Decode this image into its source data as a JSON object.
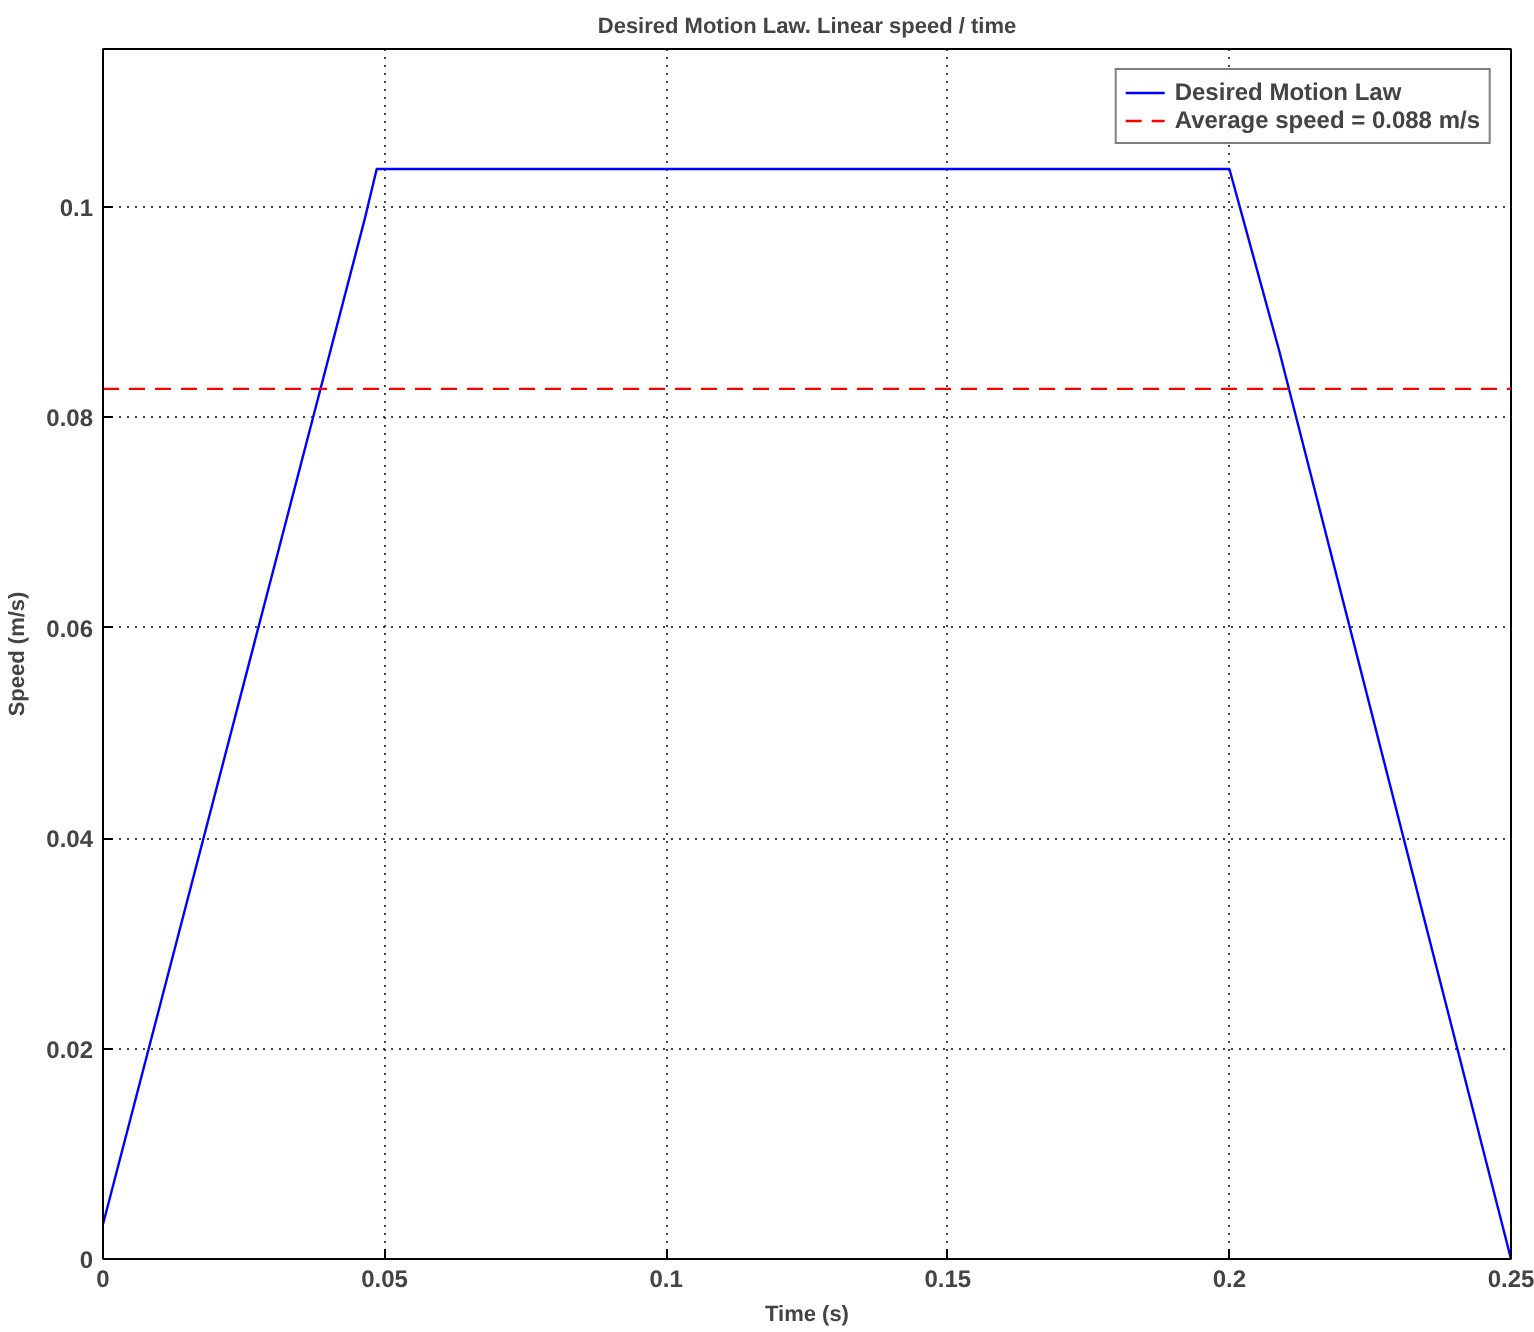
{
  "chart_data": {
    "type": "line",
    "title": "Desired Motion Law. Linear speed / time",
    "xlabel": "Time (s)",
    "ylabel": "Speed (m/s)",
    "series": [
      {
        "name": "Desired Motion Law",
        "color": "#0000ff",
        "x": [
          0,
          0.0465,
          0.0486,
          0.2,
          0.2089,
          0.25
        ],
        "values": [
          0.0033,
          0.0989,
          0.1036,
          0.1036,
          0.0862,
          0
        ]
      },
      {
        "name": "Average speed = 0.088 m/s",
        "color": "#ff0000",
        "line_style": "dashed",
        "x": [
          0,
          0.25
        ],
        "values": [
          0.0827,
          0.0827
        ]
      }
    ],
    "xlim": [
      0,
      0.25
    ],
    "ylim": [
      0,
      0.115
    ],
    "xticks": [
      0,
      0.05,
      0.1,
      0.15,
      0.2,
      0.25
    ],
    "yticks": [
      0,
      0.02,
      0.04,
      0.06,
      0.08,
      0.1
    ],
    "grid": true,
    "legend": "top right"
  }
}
